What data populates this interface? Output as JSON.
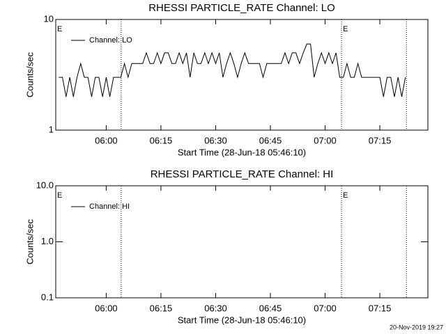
{
  "chart_data": [
    {
      "type": "line",
      "title": "RHESSI PARTICLE_RATE Channel: LO",
      "xlabel": "Start Time (28-Jun-18 05:46:10)",
      "ylabel": "Counts/sec",
      "xlim": [
        346.17,
        448.17
      ],
      "xticks": [
        {
          "value": 360,
          "label": "06:00"
        },
        {
          "value": 375,
          "label": "06:15"
        },
        {
          "value": 390,
          "label": "06:30"
        },
        {
          "value": 405,
          "label": "06:45"
        },
        {
          "value": 420,
          "label": "07:00"
        },
        {
          "value": 435,
          "label": "07:15"
        }
      ],
      "ylim": [
        1,
        10
      ],
      "yticks": [
        1,
        10
      ],
      "log_y": true,
      "legend": "upper left",
      "vlines": [
        364.1,
        424.5,
        442.3
      ],
      "annotations": [
        {
          "text": "E",
          "x": 346.17
        },
        {
          "text": "E",
          "x": 424.5
        }
      ],
      "series": [
        {
          "name": "Channel: LO",
          "color": "#000000",
          "x": [
            347,
            348,
            349,
            350,
            351,
            352,
            353,
            354,
            355,
            356,
            357,
            358,
            359,
            360,
            361,
            362,
            363,
            364,
            365,
            366,
            367,
            368,
            369,
            370,
            371,
            372,
            373,
            374,
            375,
            376,
            377,
            378,
            379,
            380,
            381,
            382,
            383,
            384,
            385,
            386,
            387,
            388,
            389,
            390,
            391,
            392,
            393,
            394,
            395,
            396,
            397,
            398,
            399,
            400,
            401,
            402,
            403,
            404,
            405,
            406,
            407,
            408,
            409,
            410,
            411,
            412,
            413,
            414,
            415,
            416,
            417,
            418,
            419,
            420,
            421,
            422,
            423,
            424,
            425,
            426,
            427,
            428,
            429,
            430,
            431,
            432,
            433,
            434,
            435,
            436,
            437,
            438,
            439,
            440,
            441,
            442
          ],
          "values": [
            3,
            3,
            2,
            3,
            2,
            3,
            4,
            3,
            3,
            2,
            3,
            3,
            2,
            3,
            2,
            3,
            3,
            3,
            4,
            3,
            4,
            4,
            4,
            4,
            5,
            4,
            4,
            5,
            4,
            5,
            5,
            4,
            4,
            5,
            4,
            5,
            3,
            5,
            4,
            4,
            5,
            4,
            5,
            4,
            5,
            3,
            4,
            5,
            4,
            3,
            4,
            5,
            4,
            4,
            4,
            4,
            3,
            4,
            4,
            4,
            4,
            4,
            5,
            4,
            5,
            5,
            4,
            5,
            6,
            6,
            3,
            4,
            5,
            4,
            5,
            4,
            5,
            3,
            3,
            4,
            3,
            3,
            4,
            3,
            3,
            3,
            3,
            3,
            3,
            2,
            3,
            3,
            2,
            3,
            2,
            3
          ]
        }
      ]
    },
    {
      "type": "line",
      "title": "RHESSI PARTICLE_RATE Channel: HI",
      "xlabel": "Start Time (28-Jun-18 05:46:10)",
      "ylabel": "Counts/sec",
      "xlim": [
        346.17,
        448.17
      ],
      "xticks": [
        {
          "value": 360,
          "label": "06:00"
        },
        {
          "value": 375,
          "label": "06:15"
        },
        {
          "value": 390,
          "label": "06:30"
        },
        {
          "value": 405,
          "label": "06:45"
        },
        {
          "value": 420,
          "label": "07:00"
        },
        {
          "value": 435,
          "label": "07:15"
        }
      ],
      "ylim": [
        0.1,
        10
      ],
      "yticks": [
        0.1,
        {
          "value": 1,
          "label": "1.0"
        },
        {
          "value": 10,
          "label": "10.0"
        }
      ],
      "log_y": true,
      "legend": "upper left",
      "vlines": [
        364.1,
        424.5,
        442.3
      ],
      "annotations": [
        {
          "text": "E",
          "x": 346.17
        },
        {
          "text": "E",
          "x": 424.5
        }
      ],
      "series": [
        {
          "name": "Channel: HI",
          "color": "#000000",
          "x": [],
          "values": []
        }
      ]
    }
  ],
  "footer": "20-Nov-2019 19:27"
}
